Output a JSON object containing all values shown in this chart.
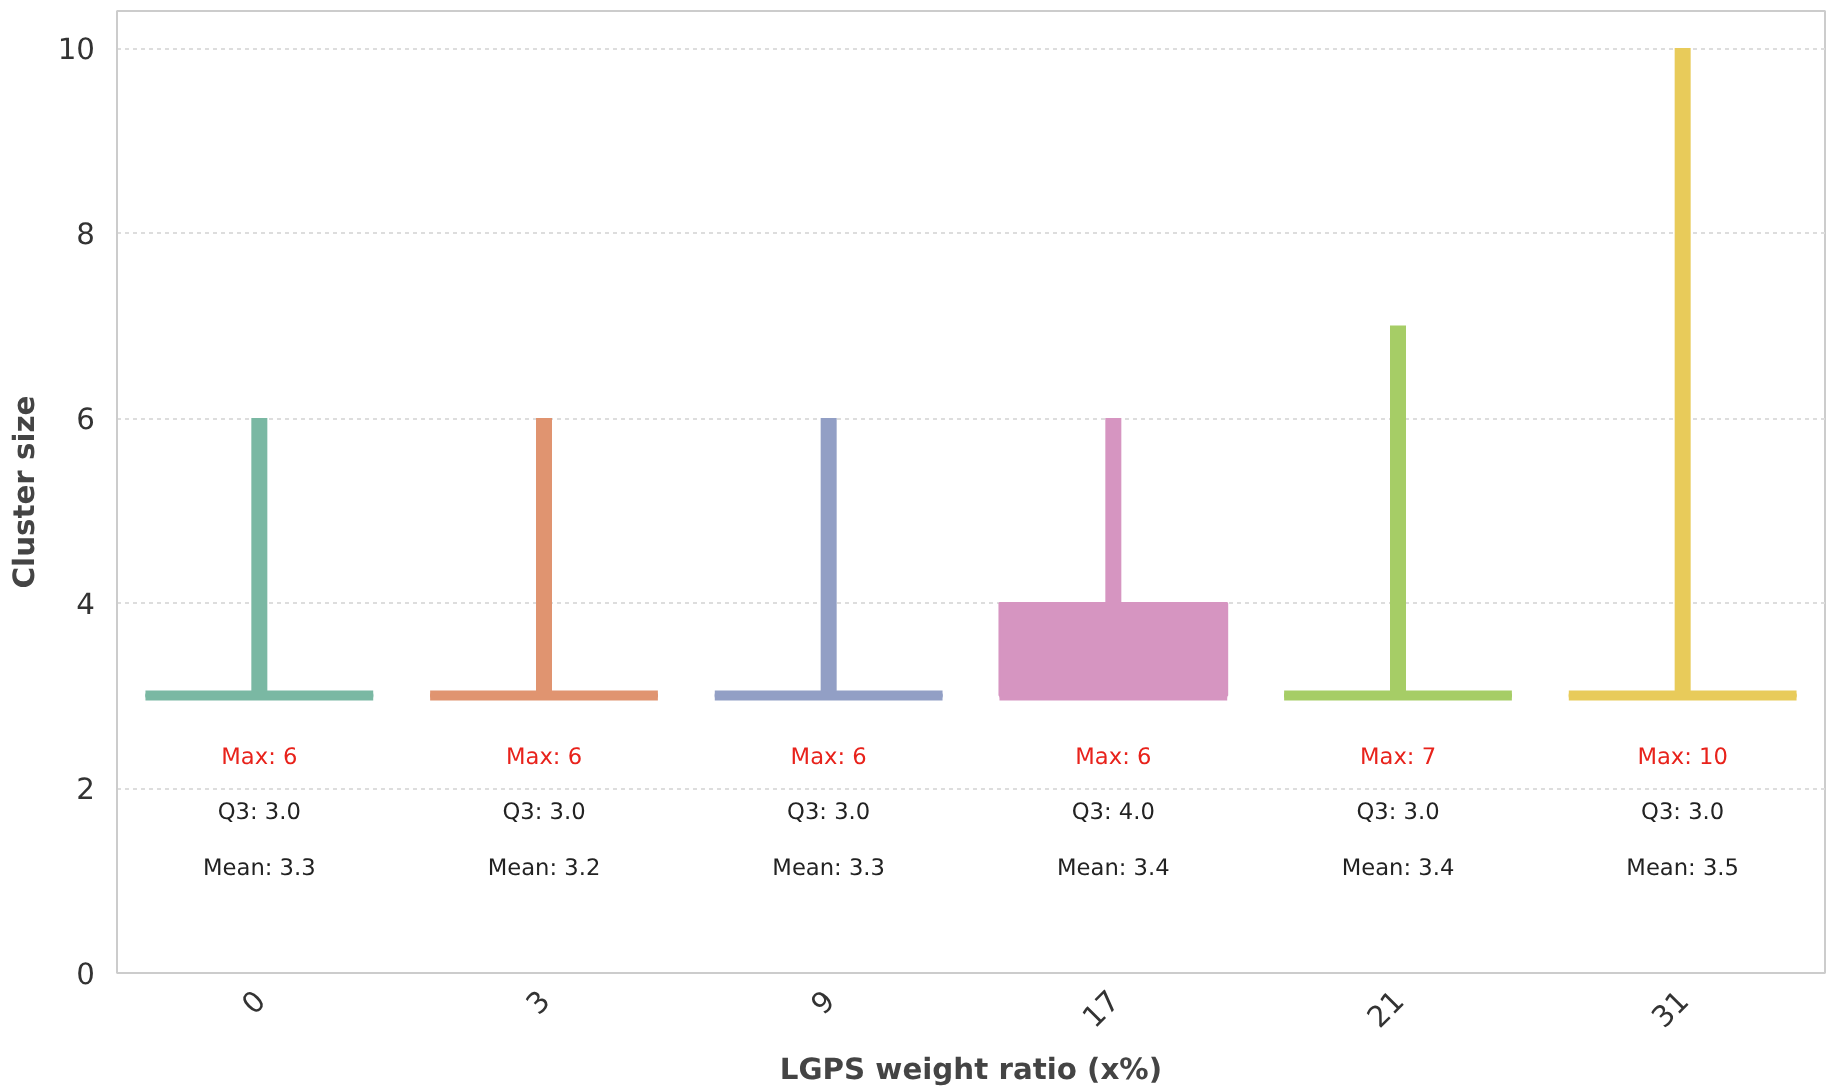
{
  "chart_data": {
    "type": "box",
    "xlabel": "LGPS weight ratio (x%)",
    "ylabel": "Cluster size",
    "categories": [
      "0",
      "3",
      "9",
      "17",
      "21",
      "31"
    ],
    "colors": [
      "#7ab8a3",
      "#e09470",
      "#929fc5",
      "#d695c1",
      "#a6cd66",
      "#e8cb5a"
    ],
    "boxes": [
      {
        "low": 3,
        "q1": 3,
        "median": 3,
        "q3": 3,
        "high": 6
      },
      {
        "low": 3,
        "q1": 3,
        "median": 3,
        "q3": 3,
        "high": 6
      },
      {
        "low": 3,
        "q1": 3,
        "median": 3,
        "q3": 3,
        "high": 6
      },
      {
        "low": 3,
        "q1": 3,
        "median": 3,
        "q3": 4,
        "high": 6
      },
      {
        "low": 3,
        "q1": 3,
        "median": 3,
        "q3": 3,
        "high": 7
      },
      {
        "low": 3,
        "q1": 3,
        "median": 3,
        "q3": 3,
        "high": 10
      }
    ],
    "annotations": [
      "Max: 6",
      "Q3: 3.0",
      "Mean: 3.3",
      "Max: 6",
      "Q3: 3.0",
      "Mean: 3.2",
      "Max: 6",
      "Q3: 3.0",
      "Mean: 3.3",
      "Max: 6",
      "Q3: 4.0",
      "Mean: 3.4",
      "Max: 7",
      "Q3: 3.0",
      "Mean: 3.4",
      "Max: 10",
      "Q3: 3.0",
      "Mean: 3.5"
    ],
    "ylim": [
      0,
      10.4
    ],
    "yticks": [
      0,
      2,
      4,
      6,
      8,
      10
    ],
    "grid": "y"
  }
}
